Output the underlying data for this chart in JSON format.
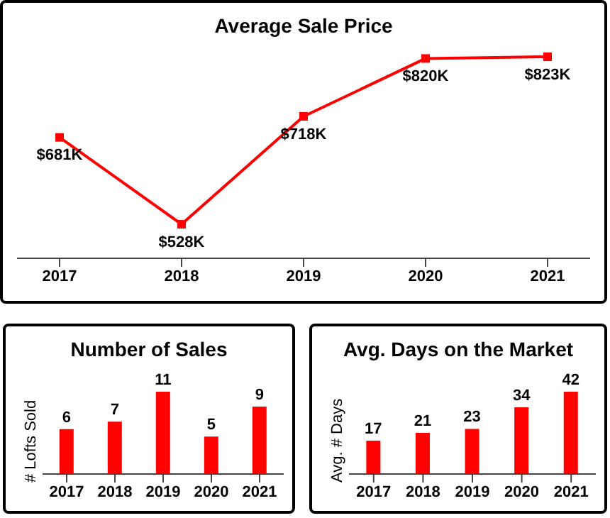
{
  "chart_data": [
    {
      "type": "line",
      "title": "Average Sale Price",
      "categories": [
        "2017",
        "2018",
        "2019",
        "2020",
        "2021"
      ],
      "values": [
        681,
        528,
        718,
        820,
        823
      ],
      "value_labels": [
        "$681K",
        "$528K",
        "$718K",
        "$820K",
        "$823K"
      ],
      "color": "#ff0000",
      "marker": "square"
    },
    {
      "type": "bar",
      "title": "Number of Sales",
      "ylabel": "# Lofts Sold",
      "categories": [
        "2017",
        "2018",
        "2019",
        "2020",
        "2021"
      ],
      "values": [
        6,
        7,
        11,
        5,
        9
      ],
      "color": "#ff0000",
      "data_labels": true
    },
    {
      "type": "bar",
      "title": "Avg. Days on the Market",
      "ylabel": "Avg. # Days",
      "categories": [
        "2017",
        "2018",
        "2019",
        "2020",
        "2021"
      ],
      "values": [
        17,
        21,
        23,
        34,
        42
      ],
      "color": "#ff0000",
      "data_labels": true
    }
  ]
}
